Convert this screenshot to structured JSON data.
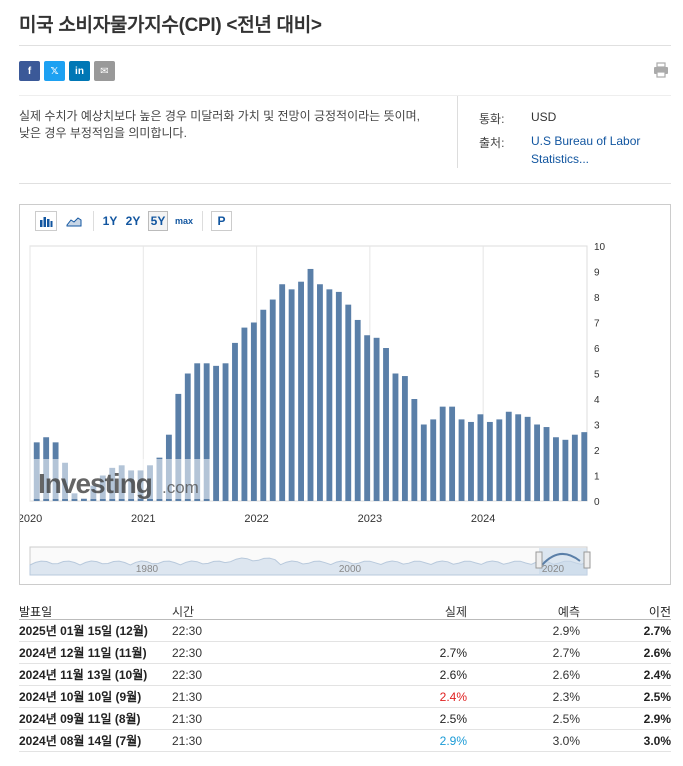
{
  "page": {
    "title": "미국 소비자물가지수(CPI) <전년 대비>",
    "description": "실제 수치가 예상치보다 높은 경우 미달러화 가치 및 전망이 긍정적이라는 뜻이며, 낮은 경우 부정적임을 의미합니다."
  },
  "share": {
    "facebook": "f",
    "twitter": "𝕏",
    "linkedin": "in",
    "email": "✉"
  },
  "meta": {
    "currency_label": "통화:",
    "currency_value": "USD",
    "source_label": "출처:",
    "source_value": "U.S Bureau of Labor Statistics..."
  },
  "toolbar": {
    "range_1y": "1Y",
    "range_2y": "2Y",
    "range_5y": "5Y",
    "range_max": "max",
    "p_button": "P"
  },
  "watermark": {
    "brand": "Investing",
    "suffix": ".com"
  },
  "colors": {
    "bar": "#5a7fa8",
    "navigator": "#b8c9dc",
    "red": "#e02020",
    "blue": "#1a9ad6",
    "link": "#1256a0"
  },
  "chart_data": {
    "type": "bar",
    "yaxis_ticks": [
      "0",
      "1",
      "2",
      "3",
      "4",
      "5",
      "6",
      "7",
      "8",
      "9",
      "10"
    ],
    "ylim": [
      0,
      10
    ],
    "x_tick_labels": [
      "2020",
      "2021",
      "2022",
      "2023",
      "2024"
    ],
    "series": [
      {
        "values": [
          2.3,
          2.5,
          2.3,
          1.5,
          0.3,
          0.1,
          0.6,
          1.0,
          1.3,
          1.4,
          1.2,
          1.2,
          1.4,
          1.7,
          2.6,
          4.2,
          5.0,
          5.4,
          5.4,
          5.3,
          5.4,
          6.2,
          6.8,
          7.0,
          7.5,
          7.9,
          8.5,
          8.3,
          8.6,
          9.1,
          8.5,
          8.3,
          8.2,
          7.7,
          7.1,
          6.5,
          6.4,
          6.0,
          5.0,
          4.9,
          4.0,
          3.0,
          3.2,
          3.7,
          3.7,
          3.2,
          3.1,
          3.4,
          3.1,
          3.2,
          3.5,
          3.4,
          3.3,
          3.0,
          2.9,
          2.5,
          2.4,
          2.6,
          2.7
        ]
      }
    ],
    "navigator": {
      "labels": [
        "1980",
        "2000",
        "2020"
      ]
    },
    "grid": true
  },
  "table": {
    "headers": {
      "date": "발표일",
      "time": "시간",
      "actual": "실제",
      "forecast": "예측",
      "previous": "이전"
    },
    "rows": [
      {
        "date": "2025년 01월 15일 (12월)",
        "time": "22:30",
        "actual": "",
        "actual_color": "#222",
        "forecast": "2.9%",
        "previous": "2.7%"
      },
      {
        "date": "2024년 12월 11일 (11월)",
        "time": "22:30",
        "actual": "2.7%",
        "actual_color": "#222",
        "forecast": "2.7%",
        "previous": "2.6%"
      },
      {
        "date": "2024년 11월 13일 (10월)",
        "time": "22:30",
        "actual": "2.6%",
        "actual_color": "#222",
        "forecast": "2.6%",
        "previous": "2.4%"
      },
      {
        "date": "2024년 10월 10일 (9월)",
        "time": "21:30",
        "actual": "2.4%",
        "actual_color": "#e02020",
        "forecast": "2.3%",
        "previous": "2.5%"
      },
      {
        "date": "2024년 09월 11일 (8월)",
        "time": "21:30",
        "actual": "2.5%",
        "actual_color": "#222",
        "forecast": "2.5%",
        "previous": "2.9%"
      },
      {
        "date": "2024년 08월 14일 (7월)",
        "time": "21:30",
        "actual": "2.9%",
        "actual_color": "#1a9ad6",
        "forecast": "3.0%",
        "previous": "3.0%"
      }
    ]
  }
}
